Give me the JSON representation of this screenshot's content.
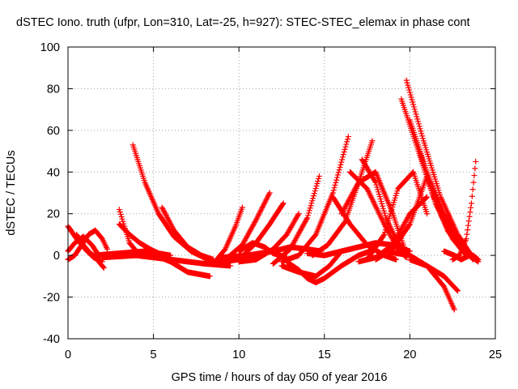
{
  "chart_data": {
    "type": "scatter",
    "title": "dSTEC Iono. truth (ufpr, Lon=310, Lat=-25, h=927): STEC-STEC_elemax in phase cont",
    "xlabel": "GPS time / hours of day 050 of year 2016",
    "ylabel": "dSTEC  / TECUs",
    "xlim": [
      0,
      25
    ],
    "ylim": [
      -40,
      100
    ],
    "xticks": [
      0,
      5,
      10,
      15,
      20,
      25
    ],
    "yticks": [
      -40,
      -20,
      0,
      20,
      40,
      60,
      80,
      100
    ],
    "grid": true,
    "marker": "+",
    "color": "#ff0000",
    "series": [
      {
        "x": [
          0.0,
          0.5,
          1.0,
          1.5,
          2.0
        ],
        "y": [
          14,
          8,
          3,
          -1,
          -3
        ]
      },
      {
        "x": [
          0.0,
          0.4,
          0.8,
          1.2,
          1.6,
          2.0,
          2.3
        ],
        "y": [
          -2,
          0,
          5,
          10,
          12,
          8,
          3
        ]
      },
      {
        "x": [
          0.5,
          0.8,
          1.2,
          1.6,
          1.9,
          2.1
        ],
        "y": [
          10,
          6,
          2,
          -1,
          -4,
          -6
        ]
      },
      {
        "x": [
          0.0,
          0.4,
          0.9,
          1.4,
          1.8
        ],
        "y": [
          2,
          6,
          9,
          5,
          0
        ]
      },
      {
        "x": [
          3.0,
          3.3,
          3.6,
          4.0,
          4.5,
          5.0
        ],
        "y": [
          22,
          14,
          6,
          2,
          0,
          -1
        ]
      },
      {
        "x": [
          3.0,
          3.6,
          4.2,
          4.8,
          5.3,
          6.0
        ],
        "y": [
          15,
          10,
          6,
          3,
          1,
          0
        ]
      },
      {
        "x": [
          3.8,
          4.5,
          5.3,
          6.2,
          7.2,
          8.2
        ],
        "y": [
          53,
          35,
          20,
          9,
          2,
          -2
        ]
      },
      {
        "x": [
          5.5,
          6.2,
          7.0,
          7.8,
          8.5
        ],
        "y": [
          23,
          12,
          4,
          0,
          -2
        ]
      },
      {
        "x": [
          1.5,
          3.0,
          4.5,
          6.0,
          7.0,
          8.3
        ],
        "y": [
          0,
          1,
          2,
          -3,
          -8,
          -10
        ]
      },
      {
        "x": [
          2.0,
          4.0,
          6.0,
          8.0,
          9.5
        ],
        "y": [
          -1,
          0,
          -2,
          -4,
          -5
        ]
      },
      {
        "x": [
          8.0,
          8.6,
          9.2,
          9.8,
          10.2
        ],
        "y": [
          -4,
          -3,
          3,
          14,
          23
        ]
      },
      {
        "x": [
          8.3,
          9.2,
          10.2,
          11.0,
          11.8
        ],
        "y": [
          -4,
          -2,
          5,
          17,
          30
        ]
      },
      {
        "x": [
          9.0,
          10.0,
          11.0,
          11.8,
          12.6
        ],
        "y": [
          -3,
          -2,
          6,
          15,
          25
        ]
      },
      {
        "x": [
          10.0,
          11.0,
          12.0,
          12.8,
          13.5
        ],
        "y": [
          -3,
          -2,
          3,
          10,
          20
        ]
      },
      {
        "x": [
          10.0,
          10.8,
          11.5,
          12.0,
          12.8
        ],
        "y": [
          2,
          6,
          4,
          1,
          -1
        ]
      },
      {
        "x": [
          9.0,
          10.5,
          12.0,
          13.0,
          14.0,
          14.8
        ],
        "y": [
          -1,
          0,
          2,
          4,
          3,
          2
        ]
      },
      {
        "x": [
          12.0,
          13.0,
          14.0,
          14.7
        ],
        "y": [
          -4,
          3,
          18,
          38
        ]
      },
      {
        "x": [
          12.5,
          13.5,
          14.5,
          15.5,
          16.4
        ],
        "y": [
          -3,
          0,
          10,
          30,
          57
        ]
      },
      {
        "x": [
          12.5,
          13.5,
          14.5,
          15.3,
          16.0
        ],
        "y": [
          -5,
          -8,
          -10,
          -5,
          2
        ]
      },
      {
        "x": [
          12.8,
          13.5,
          14.0,
          14.5,
          15.0,
          16.0,
          17.0,
          18.0
        ],
        "y": [
          -3,
          -7,
          -11,
          -13,
          -11,
          -5,
          0,
          3
        ]
      },
      {
        "x": [
          14.3,
          15.2,
          16.2,
          17.0,
          17.8
        ],
        "y": [
          0,
          5,
          16,
          35,
          55
        ]
      },
      {
        "x": [
          15.5,
          16.5,
          17.5,
          18.5,
          19.2
        ],
        "y": [
          28,
          15,
          5,
          0,
          -2
        ]
      },
      {
        "x": [
          16.0,
          17.0,
          18.0,
          19.0,
          19.7
        ],
        "y": [
          20,
          35,
          40,
          20,
          3
        ]
      },
      {
        "x": [
          16.5,
          17.5,
          18.5,
          19.3,
          19.8
        ],
        "y": [
          40,
          32,
          15,
          3,
          -1
        ]
      },
      {
        "x": [
          17.2,
          18.0,
          18.6,
          19.3,
          20.0
        ],
        "y": [
          46,
          35,
          18,
          6,
          0
        ]
      },
      {
        "x": [
          14.0,
          15.0,
          16.0,
          17.0,
          18.0,
          19.0,
          20.0
        ],
        "y": [
          1,
          0,
          2,
          4,
          6,
          5,
          2
        ]
      },
      {
        "x": [
          17.5,
          18.5,
          19.3,
          20.2,
          21.0
        ],
        "y": [
          -2,
          10,
          32,
          40,
          20
        ]
      },
      {
        "x": [
          17.0,
          18.0,
          19.0,
          20.0,
          21.0
        ],
        "y": [
          -3,
          -1,
          5,
          20,
          28
        ]
      },
      {
        "x": [
          19.5,
          20.5,
          21.5,
          22.5,
          23.3
        ],
        "y": [
          75,
          50,
          25,
          8,
          0
        ]
      },
      {
        "x": [
          19.8,
          20.8,
          21.8,
          22.8,
          23.6
        ],
        "y": [
          84,
          55,
          28,
          10,
          0
        ]
      },
      {
        "x": [
          20.0,
          21.0,
          22.0,
          23.0,
          23.7
        ],
        "y": [
          65,
          40,
          18,
          5,
          -2
        ]
      },
      {
        "x": [
          20.5,
          21.3,
          22.2,
          23.0,
          23.8
        ],
        "y": [
          52,
          30,
          12,
          3,
          -1
        ]
      },
      {
        "x": [
          18.0,
          19.0,
          20.0,
          21.0,
          22.0,
          23.0
        ],
        "y": [
          -2,
          3,
          15,
          38,
          20,
          5
        ]
      },
      {
        "x": [
          18.5,
          20.0,
          21.0,
          22.0,
          22.6
        ],
        "y": [
          2,
          0,
          -5,
          -15,
          -26
        ]
      },
      {
        "x": [
          20.0,
          21.0,
          22.0,
          22.8
        ],
        "y": [
          -2,
          -5,
          -10,
          -17
        ]
      },
      {
        "x": [
          22.2,
          22.6,
          23.0,
          23.4,
          23.7,
          24.0
        ],
        "y": [
          20,
          10,
          4,
          0,
          0,
          -2
        ]
      },
      {
        "x": [
          22.5,
          22.9,
          23.3,
          23.6,
          23.85
        ],
        "y": [
          -2,
          0,
          8,
          25,
          45
        ]
      },
      {
        "x": [
          22.0,
          22.6,
          23.0,
          23.5,
          24.0
        ],
        "y": [
          2,
          0,
          -2,
          0,
          -3
        ]
      }
    ]
  }
}
